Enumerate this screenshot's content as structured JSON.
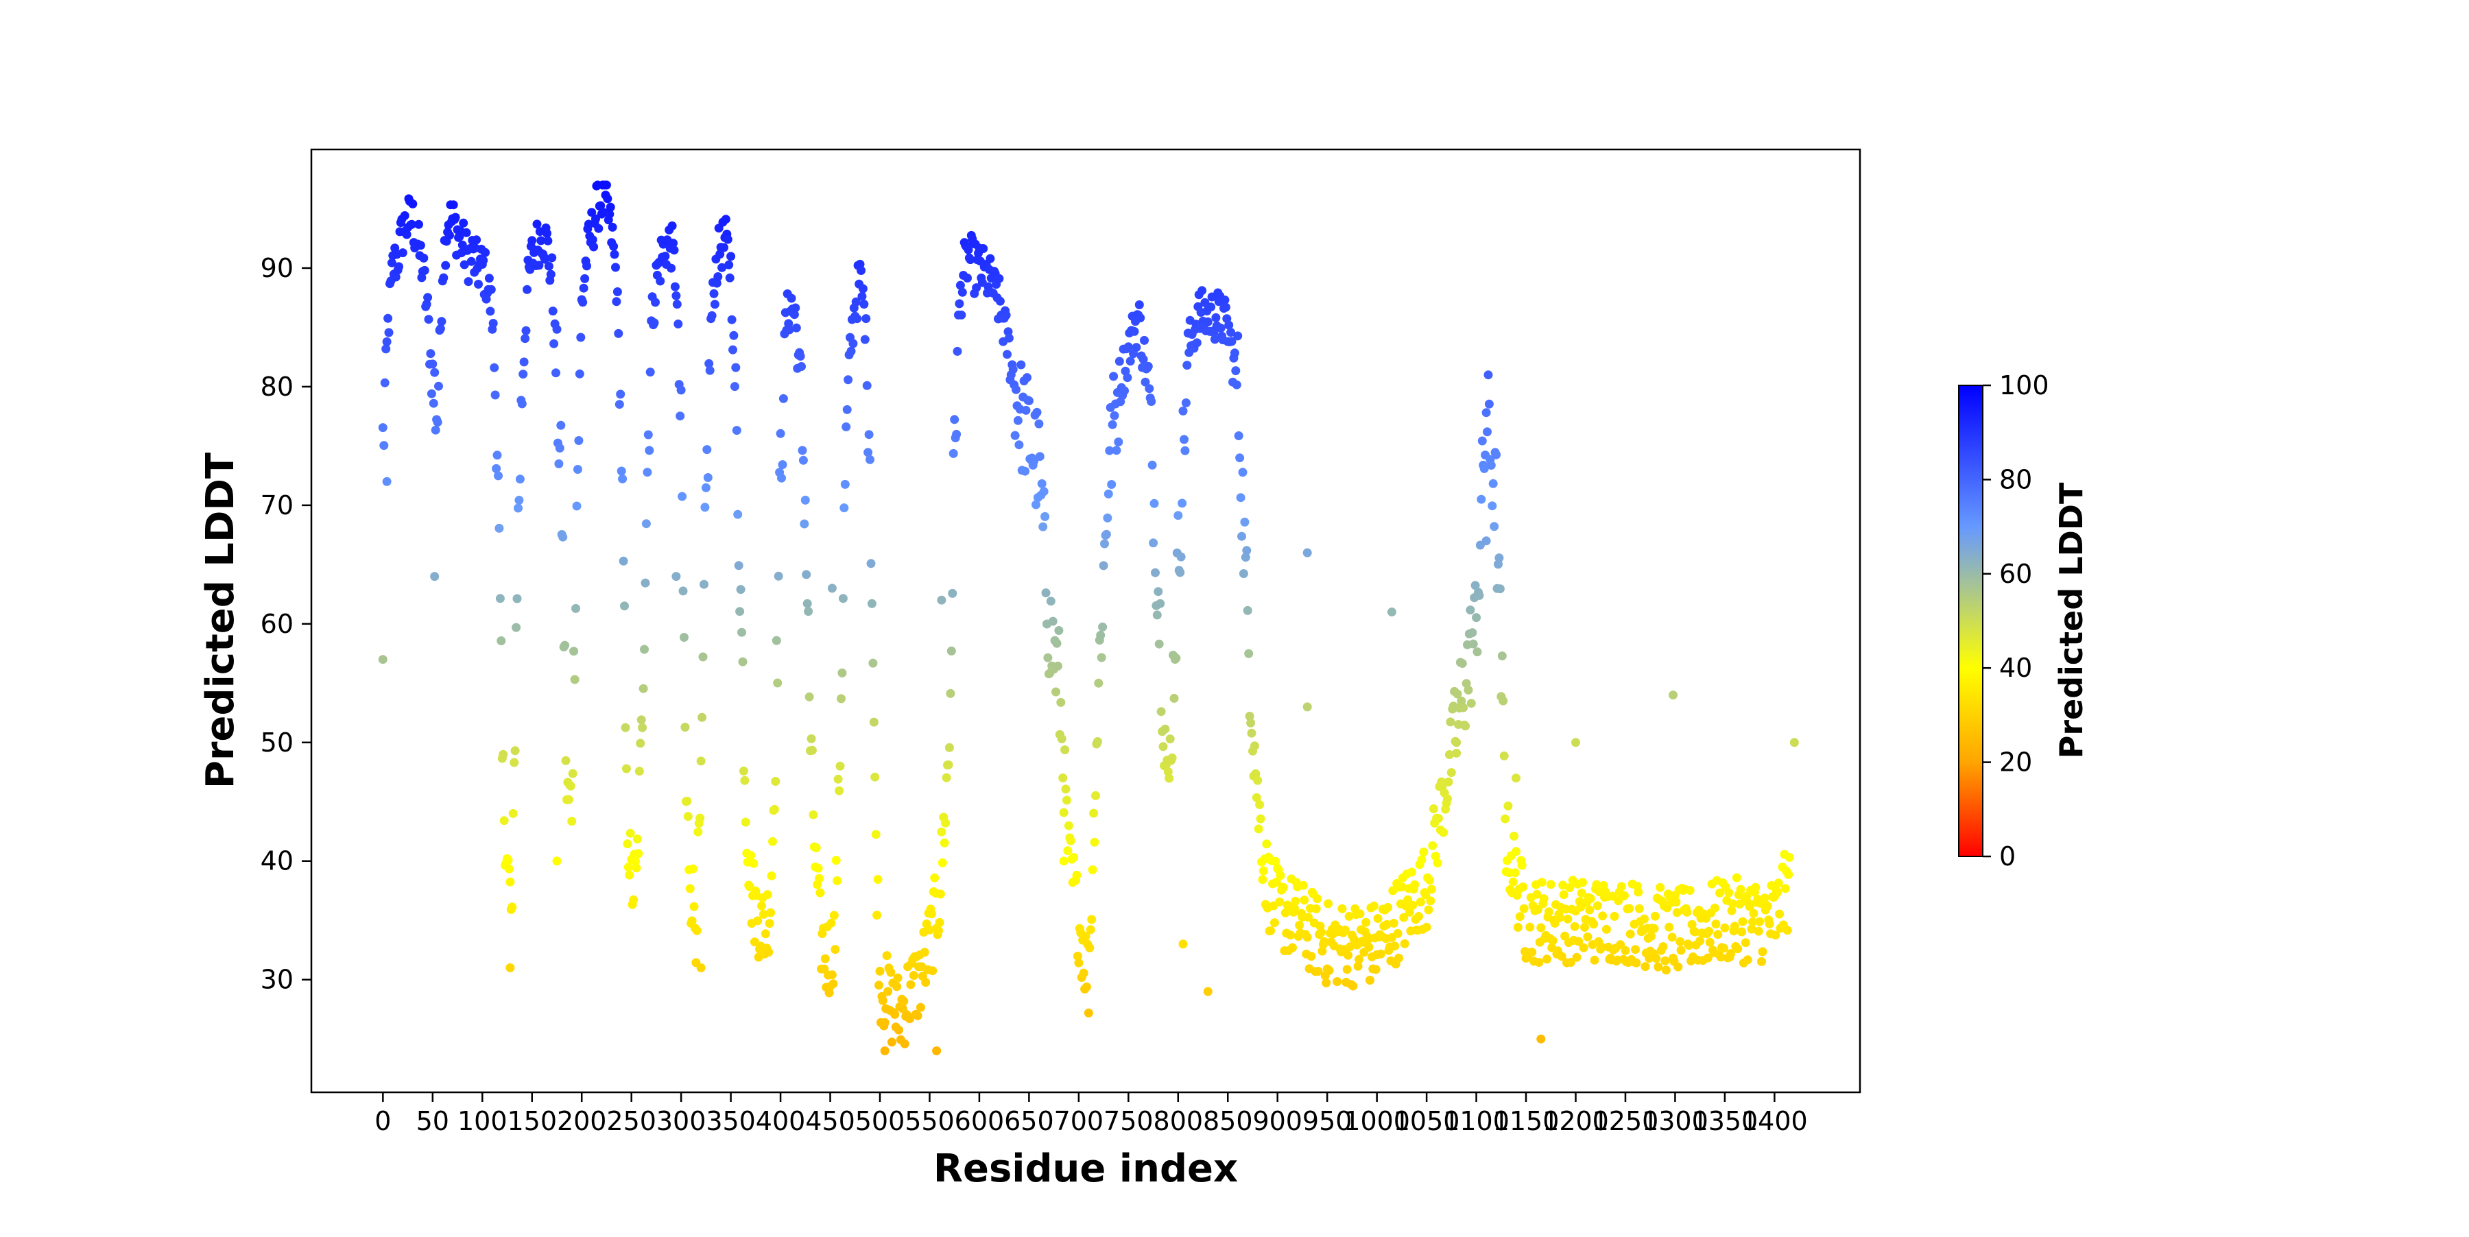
{
  "chart_data": {
    "type": "scatter",
    "xlabel": "Residue index",
    "ylabel": "Predicted LDDT",
    "xlim": [
      -72,
      1486
    ],
    "ylim": [
      20.5,
      100
    ],
    "grid": false,
    "x_ticks": [
      0,
      50,
      100,
      150,
      200,
      250,
      300,
      350,
      400,
      450,
      500,
      550,
      600,
      650,
      700,
      750,
      800,
      850,
      900,
      950,
      1000,
      1050,
      1100,
      1150,
      1200,
      1250,
      1300,
      1350,
      1400
    ],
    "x_tick_labels": [
      "0",
      "50",
      "100",
      "150",
      "200",
      "250",
      "300",
      "350",
      "400",
      "450",
      "500",
      "550",
      "600",
      "650",
      "700",
      "750",
      "800",
      "850",
      "900",
      "950",
      "1000",
      "1050",
      "1100",
      "1150",
      "1200",
      "1250",
      "1300",
      "1350",
      "1400"
    ],
    "y_ticks": [
      30,
      40,
      50,
      60,
      70,
      80,
      90
    ],
    "y_tick_labels": [
      "30",
      "40",
      "50",
      "60",
      "70",
      "80",
      "90"
    ],
    "colorbar": {
      "label": "Predicted LDDT",
      "range": [
        0,
        100
      ],
      "ticks": [
        0,
        20,
        40,
        60,
        80,
        100
      ],
      "tick_labels": [
        "0",
        "20",
        "40",
        "60",
        "80",
        "100"
      ],
      "colors": [
        "#ff0000",
        "#ffa500",
        "#ffff00",
        "#6699ff",
        "#0000ff"
      ],
      "color_stops": [
        0,
        20,
        40,
        70,
        100
      ]
    },
    "profile_x": [
      0,
      5,
      10,
      15,
      20,
      25,
      30,
      35,
      40,
      45,
      50,
      55,
      60,
      65,
      70,
      75,
      80,
      85,
      90,
      95,
      100,
      105,
      110,
      115,
      120,
      125,
      130,
      135,
      140,
      145,
      150,
      155,
      160,
      165,
      170,
      175,
      180,
      185,
      190,
      195,
      200,
      205,
      210,
      215,
      220,
      225,
      230,
      235,
      240,
      245,
      250,
      255,
      260,
      265,
      270,
      275,
      280,
      285,
      290,
      295,
      300,
      305,
      310,
      315,
      320,
      325,
      330,
      335,
      340,
      345,
      350,
      355,
      360,
      365,
      370,
      375,
      380,
      385,
      390,
      395,
      400,
      405,
      410,
      415,
      420,
      425,
      430,
      435,
      440,
      445,
      450,
      455,
      460,
      465,
      470,
      475,
      480,
      485,
      490,
      495,
      500,
      510,
      520,
      530,
      540,
      550,
      560,
      570,
      575,
      580,
      585,
      590,
      595,
      600,
      610,
      620,
      630,
      640,
      650,
      660,
      670,
      680,
      690,
      700,
      710,
      720,
      730,
      740,
      750,
      760,
      770,
      780,
      790,
      800,
      810,
      820,
      830,
      840,
      850,
      860,
      870,
      880,
      890,
      900,
      920,
      950,
      1000,
      1050,
      1100,
      1110,
      1120,
      1130,
      1150,
      1200,
      1250,
      1300,
      1350,
      1400,
      1415
    ],
    "profile_y": [
      75,
      85,
      90,
      91,
      93,
      94,
      94,
      92,
      90,
      86,
      80,
      78,
      90,
      94,
      94,
      93,
      92,
      91,
      91,
      90,
      90,
      89,
      86,
      76,
      48,
      40,
      35,
      65,
      80,
      88,
      91,
      92,
      93,
      92,
      89,
      80,
      70,
      45,
      45,
      70,
      87,
      91,
      93,
      95,
      96,
      95,
      93,
      89,
      75,
      45,
      38,
      38,
      50,
      70,
      85,
      89,
      91,
      92,
      92,
      89,
      75,
      45,
      38,
      35,
      45,
      70,
      85,
      90,
      92,
      92,
      90,
      78,
      62,
      45,
      38,
      36,
      35,
      34,
      37,
      50,
      73,
      85,
      87,
      86,
      80,
      70,
      50,
      40,
      34,
      32,
      32,
      34,
      50,
      72,
      83,
      87,
      89,
      86,
      75,
      45,
      30,
      28,
      27,
      29,
      30,
      33,
      37,
      50,
      75,
      87,
      90,
      91,
      90,
      90,
      89,
      87,
      83,
      78,
      76,
      73,
      60,
      55,
      40,
      35,
      30,
      55,
      73,
      80,
      83,
      86,
      80,
      63,
      45,
      65,
      83,
      86,
      86,
      86,
      85,
      80,
      60,
      45,
      38,
      36,
      35,
      33,
      33,
      38,
      60,
      78,
      70,
      42,
      35,
      35,
      35,
      34,
      35,
      35,
      38,
      38
    ],
    "deviant_points": [
      [
        0,
        57
      ],
      [
        4,
        72
      ],
      [
        52,
        64
      ],
      [
        128,
        31
      ],
      [
        175,
        40
      ],
      [
        295,
        64
      ],
      [
        320,
        31
      ],
      [
        452,
        63
      ],
      [
        505,
        24
      ],
      [
        557,
        24
      ],
      [
        562,
        62
      ],
      [
        685,
        40
      ],
      [
        805,
        33
      ],
      [
        830,
        29
      ],
      [
        930,
        66
      ],
      [
        930,
        53
      ],
      [
        1015,
        61
      ],
      [
        1080,
        50
      ],
      [
        1110,
        67
      ],
      [
        1140,
        47
      ],
      [
        1165,
        25
      ],
      [
        1200,
        50
      ],
      [
        1298,
        54
      ],
      [
        1420,
        50
      ]
    ]
  }
}
